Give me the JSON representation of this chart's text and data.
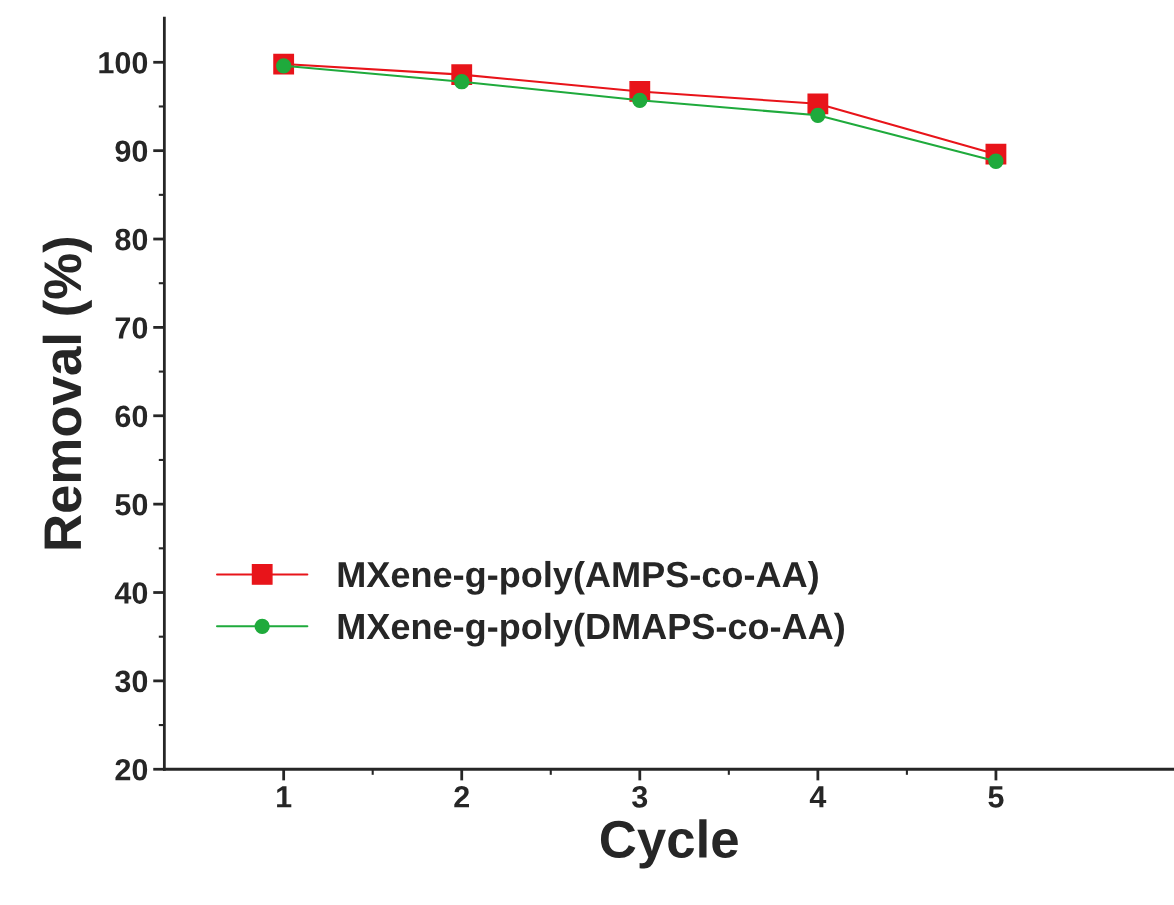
{
  "chart_data": {
    "type": "line",
    "xlabel": "Cycle",
    "ylabel": "Removal (%)",
    "x": [
      1,
      2,
      3,
      4,
      5
    ],
    "series": [
      {
        "name": "MXene-g-poly(AMPS-co-AA)",
        "color": "#e8141a",
        "marker": "square",
        "values": [
          99.8,
          98.6,
          96.7,
          95.3,
          89.6
        ]
      },
      {
        "name": "MXene-g-poly(DMAPS-co-AA)",
        "color": "#1faa3c",
        "marker": "circle",
        "values": [
          99.6,
          97.8,
          95.7,
          94.0,
          88.8
        ]
      }
    ],
    "xlim": [
      0.33,
      6.0
    ],
    "xticks": [
      1,
      2,
      3,
      4,
      5
    ],
    "ylim": [
      20,
      105
    ],
    "yticks": [
      20,
      30,
      40,
      50,
      60,
      70,
      80,
      90,
      100
    ],
    "grid": false,
    "legend": "bottom left"
  }
}
